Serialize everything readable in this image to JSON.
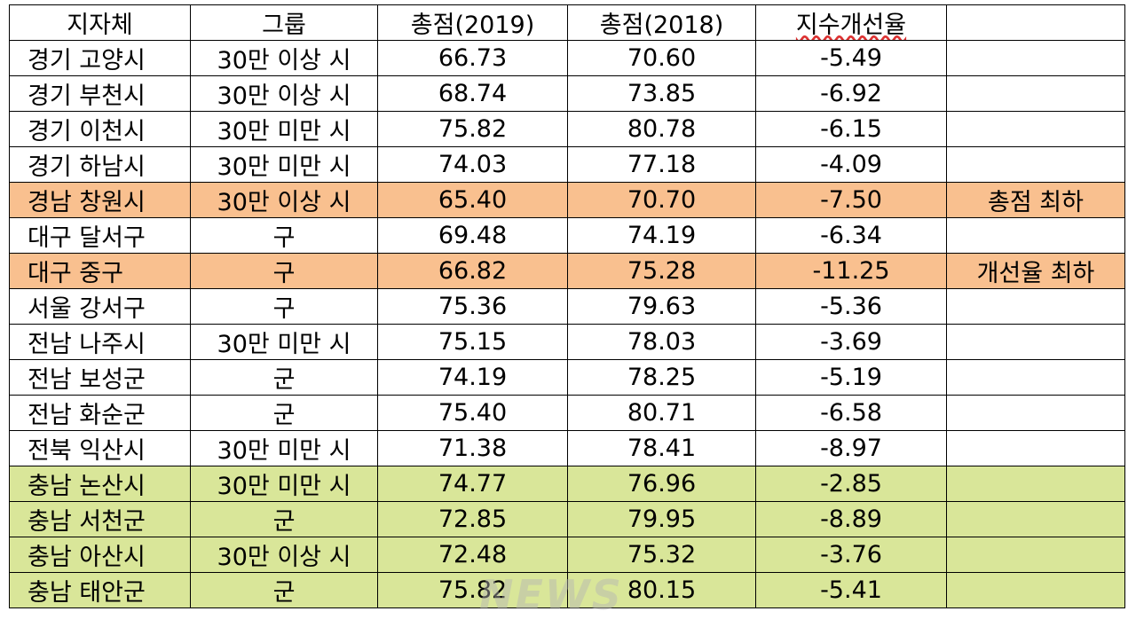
{
  "header": [
    "지자체",
    "그룹",
    "총점(2019)",
    "총점(2018)",
    "지수개선율",
    ""
  ],
  "rows": [
    {
      "region": "경기 고양시",
      "group": "30만 이상 시",
      "score2019": "66.73",
      "score2018": "70.60",
      "rate": "-5.49",
      "note": "",
      "highlight": ""
    },
    {
      "region": "경기 부천시",
      "group": "30만 이상 시",
      "score2019": "68.74",
      "score2018": "73.85",
      "rate": "-6.92",
      "note": "",
      "highlight": ""
    },
    {
      "region": "경기 이천시",
      "group": "30만 미만 시",
      "score2019": "75.82",
      "score2018": "80.78",
      "rate": "-6.15",
      "note": "",
      "highlight": ""
    },
    {
      "region": "경기 하남시",
      "group": "30만 미만 시",
      "score2019": "74.03",
      "score2018": "77.18",
      "rate": "-4.09",
      "note": "",
      "highlight": ""
    },
    {
      "region": "경남 창원시",
      "group": "30만 이상 시",
      "score2019": "65.40",
      "score2018": "70.70",
      "rate": "-7.50",
      "note": "총점 최하",
      "highlight": "orange"
    },
    {
      "region": "대구 달서구",
      "group": "구",
      "score2019": "69.48",
      "score2018": "74.19",
      "rate": "-6.34",
      "note": "",
      "highlight": ""
    },
    {
      "region": "대구 중구",
      "group": "구",
      "score2019": "66.82",
      "score2018": "75.28",
      "rate": "-11.25",
      "note": "개선율 최하",
      "highlight": "orange"
    },
    {
      "region": "서울 강서구",
      "group": "구",
      "score2019": "75.36",
      "score2018": "79.63",
      "rate": "-5.36",
      "note": "",
      "highlight": ""
    },
    {
      "region": "전남 나주시",
      "group": "30만 미만 시",
      "score2019": "75.15",
      "score2018": "78.03",
      "rate": "-3.69",
      "note": "",
      "highlight": ""
    },
    {
      "region": "전남 보성군",
      "group": "군",
      "score2019": "74.19",
      "score2018": "78.25",
      "rate": "-5.19",
      "note": "",
      "highlight": ""
    },
    {
      "region": "전남 화순군",
      "group": "군",
      "score2019": "75.40",
      "score2018": "80.71",
      "rate": "-6.58",
      "note": "",
      "highlight": ""
    },
    {
      "region": "전북 익산시",
      "group": "30만 미만 시",
      "score2019": "71.38",
      "score2018": "78.41",
      "rate": "-8.97",
      "note": "",
      "highlight": ""
    },
    {
      "region": "충남 논산시",
      "group": "30만 미만 시",
      "score2019": "74.77",
      "score2018": "76.96",
      "rate": "-2.85",
      "note": "",
      "highlight": "green"
    },
    {
      "region": "충남 서천군",
      "group": "군",
      "score2019": "72.85",
      "score2018": "79.95",
      "rate": "-8.89",
      "note": "",
      "highlight": "green"
    },
    {
      "region": "충남 아산시",
      "group": "30만 이상 시",
      "score2019": "72.48",
      "score2018": "75.32",
      "rate": "-3.76",
      "note": "",
      "highlight": "green"
    },
    {
      "region": "충남 태안군",
      "group": "군",
      "score2019": "75.82",
      "score2018": "80.15",
      "rate": "-5.41",
      "note": "",
      "highlight": "green"
    }
  ],
  "watermark": "NEWS",
  "colors": {
    "orange": "#f9c08f",
    "green": "#d9e699"
  }
}
